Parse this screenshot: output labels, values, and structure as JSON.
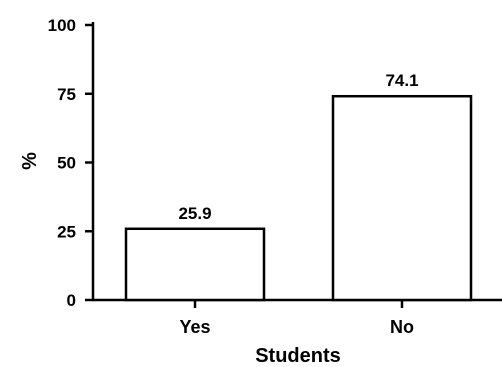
{
  "chart_data": {
    "type": "bar",
    "categories": [
      "Yes",
      "No"
    ],
    "values": [
      25.9,
      74.1
    ],
    "data_labels": [
      "25.9",
      "74.1"
    ],
    "title": "",
    "xlabel": "Students",
    "ylabel": "%",
    "ylim": [
      0,
      100
    ],
    "yticks": [
      0,
      25,
      50,
      75,
      100
    ],
    "ytick_labels": [
      "0",
      "25",
      "50",
      "75",
      "100"
    ],
    "grid": false,
    "legend": "none",
    "bar_fill": "#ffffff",
    "bar_stroke": "#000000"
  }
}
